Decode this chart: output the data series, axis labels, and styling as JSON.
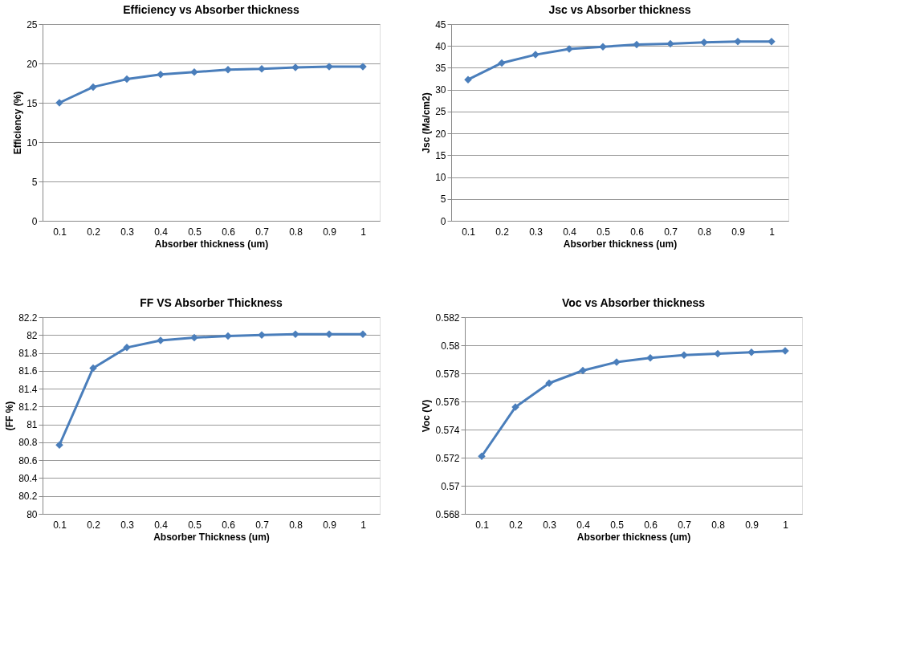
{
  "chart_data": [
    {
      "type": "line",
      "title": "Efficiency vs Absorber thickness",
      "xlabel": "Absorber thickness (um)",
      "ylabel": "Efficiency (%)",
      "categories": [
        "0.1",
        "0.2",
        "0.3",
        "0.4",
        "0.5",
        "0.6",
        "0.7",
        "0.8",
        "0.9",
        "1"
      ],
      "series": [
        {
          "color": "#4a7ebb",
          "values": [
            15.0,
            17.0,
            18.0,
            18.6,
            18.9,
            19.2,
            19.3,
            19.5,
            19.6,
            19.6
          ]
        }
      ],
      "ylim": [
        0,
        25
      ],
      "yticks": [
        0,
        5,
        10,
        15,
        20,
        25
      ],
      "grid": "y",
      "marker": "diamond",
      "line_style": "solid"
    },
    {
      "type": "line",
      "title": "Jsc vs Absorber thickness",
      "xlabel": "Absorber thickness (um)",
      "ylabel": "Jsc (Ma/cm2)",
      "categories": [
        "0.1",
        "0.2",
        "0.3",
        "0.4",
        "0.5",
        "0.6",
        "0.7",
        "0.8",
        "0.9",
        "1"
      ],
      "series": [
        {
          "color": "#4a7ebb",
          "values": [
            32.3,
            36.1,
            38.0,
            39.3,
            39.8,
            40.3,
            40.5,
            40.8,
            41.0,
            41.0
          ]
        }
      ],
      "ylim": [
        0,
        45
      ],
      "yticks": [
        0,
        5,
        10,
        15,
        20,
        25,
        30,
        35,
        40,
        45
      ],
      "grid": "y",
      "marker": "diamond",
      "line_style": "solid"
    },
    {
      "type": "line",
      "title": "FF VS Absorber Thickness",
      "xlabel": "Absorber Thickness (um)",
      "ylabel": "(FF %)",
      "categories": [
        "0.1",
        "0.2",
        "0.3",
        "0.4",
        "0.5",
        "0.6",
        "0.7",
        "0.8",
        "0.9",
        "1"
      ],
      "series": [
        {
          "color": "#4a7ebb",
          "values": [
            80.77,
            81.63,
            81.86,
            81.94,
            81.97,
            81.99,
            82.0,
            82.01,
            82.01,
            82.01
          ]
        }
      ],
      "ylim": [
        80,
        82.2
      ],
      "yticks": [
        80,
        80.2,
        80.4,
        80.6,
        80.8,
        81,
        81.2,
        81.4,
        81.6,
        81.8,
        82,
        82.2
      ],
      "grid": "y",
      "marker": "diamond",
      "line_style": "solid"
    },
    {
      "type": "line",
      "title": "Voc vs Absorber thickness",
      "xlabel": "Absorber thickness (um)",
      "ylabel": "Voc (V)",
      "categories": [
        "0.1",
        "0.2",
        "0.3",
        "0.4",
        "0.5",
        "0.6",
        "0.7",
        "0.8",
        "0.9",
        "1"
      ],
      "series": [
        {
          "color": "#4a7ebb",
          "values": [
            0.5721,
            0.5756,
            0.5773,
            0.5782,
            0.5788,
            0.5791,
            0.5793,
            0.5794,
            0.5795,
            0.5796
          ]
        }
      ],
      "ylim": [
        0.568,
        0.582
      ],
      "yticks": [
        0.568,
        0.57,
        0.572,
        0.574,
        0.576,
        0.578,
        0.58,
        0.582
      ],
      "grid": "y",
      "marker": "diamond",
      "line_style": "solid"
    }
  ]
}
